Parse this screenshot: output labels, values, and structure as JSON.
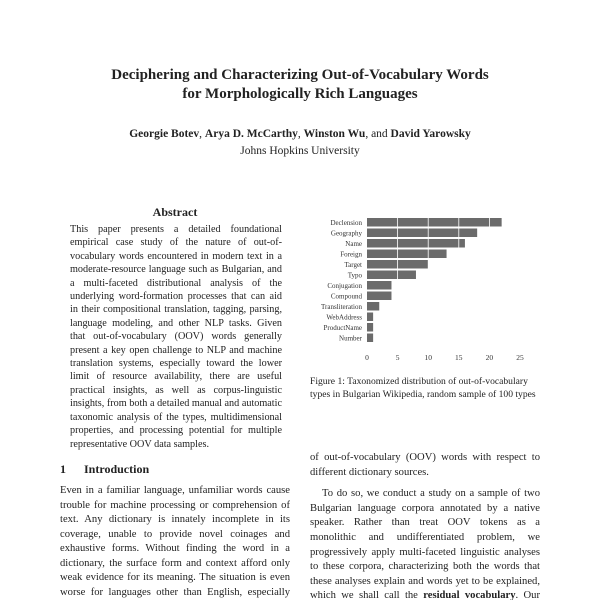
{
  "title": [
    "Deciphering and Characterizing Out-of-Vocabulary Words",
    "for Morphologically Rich Languages"
  ],
  "authors": {
    "names": [
      "Georgie Botev",
      "Arya D. McCarthy",
      "Winston Wu"
    ],
    "separator": ", ",
    "and": ", and ",
    "last": "David Yarowsky",
    "affiliation": "Johns Hopkins University"
  },
  "abstract": {
    "heading": "Abstract",
    "text": "This paper presents a detailed foundational empirical case study of the nature of out-of-vocabulary words encountered in modern text in a moderate-resource language such as Bulgarian, and a multi-faceted distributional analysis of the underlying word-formation processes that can aid in their compositional translation, tagging, parsing, language modeling, and other NLP tasks. Given that out-of-vocabulary (OOV) words generally present a key open challenge to NLP and machine translation systems, especially toward the lower limit of resource availability, there are useful practical insights, as well as corpus-linguistic insights, from both a detailed manual and automatic taxonomic analysis of the types, multidimensional properties, and processing potential for multiple representative OOV data samples."
  },
  "introduction": {
    "number": "1",
    "heading": "Introduction",
    "left_text": "Even in a familiar language, unfamiliar words cause trouble for machine processing or comprehension of text. Any dictionary is innately incomplete in its coverage, unable to provide novel coinages and exhaustive forms. Without finding the word in a dictionary, the surface form and context afford only weak evidence for its meaning. The situation is even worse for languages other than English, especially morphologically rich languages, for two reasons:",
    "right_p1": "of out-of-vocabulary (OOV) words with respect to different dictionary sources.",
    "right_p2_before": "To do so, we conduct a study on a sample of two Bulgarian language corpora annotated by a native speaker. Rather than treat OOV tokens as a monolithic and undifferentiated problem, we progressively apply multi-faceted linguistic analyses to these corpora, characterizing both the words that these analyses explain and words yet to be explained, which we shall call the ",
    "right_p2_bold": "residual vocabulary",
    "right_p2_after": ". Our methods are a mixture of the virtues and the"
  },
  "figure": {
    "caption": "Figure 1: Taxonomized distribution of out-of-vocabulary types in Bulgarian Wikipedia, random sample of 100 types"
  },
  "chart_data": {
    "type": "bar",
    "orientation": "horizontal",
    "categories": [
      "Declension",
      "Geography",
      "Name",
      "Foreign",
      "Target",
      "Typo",
      "Conjugation",
      "Compound",
      "Transliteration",
      "WebAddress",
      "ProductName",
      "Number"
    ],
    "values": [
      22,
      18,
      16,
      13,
      10,
      8,
      4,
      4,
      2,
      1,
      1,
      1
    ],
    "xlim": [
      0,
      25
    ],
    "xticks": [
      0,
      5,
      10,
      15,
      20,
      25
    ],
    "grid": "vertical white lines over bars",
    "bar_color": "#6b6b6b",
    "title": "",
    "xlabel": "",
    "ylabel": ""
  }
}
